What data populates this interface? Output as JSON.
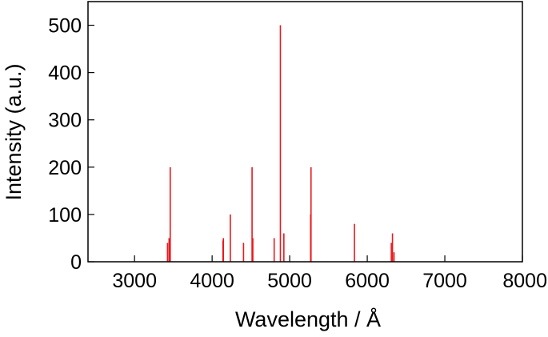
{
  "chart_data": {
    "type": "bar",
    "subtype": "stem-spectrum",
    "title": "",
    "xlabel": "Wavelength / Å",
    "ylabel": "Intensity (a.u.)",
    "xlim": [
      2400,
      8000
    ],
    "ylim": [
      0,
      550
    ],
    "xticks": [
      3000,
      4000,
      5000,
      6000,
      7000,
      8000
    ],
    "yticks": [
      0,
      100,
      200,
      300,
      400,
      500
    ],
    "grid": false,
    "legend": "none",
    "line_color": "#e8191e",
    "series": [
      {
        "x": [
          3425,
          3445,
          3460,
          4140,
          4145,
          4235,
          4405,
          4515,
          4525,
          4800,
          4880,
          4925,
          5270,
          5275,
          5835,
          6310,
          6325,
          6345
        ],
        "y": [
          40,
          50,
          200,
          45,
          50,
          100,
          40,
          200,
          50,
          50,
          500,
          60,
          100,
          200,
          80,
          40,
          60,
          20
        ]
      }
    ]
  }
}
